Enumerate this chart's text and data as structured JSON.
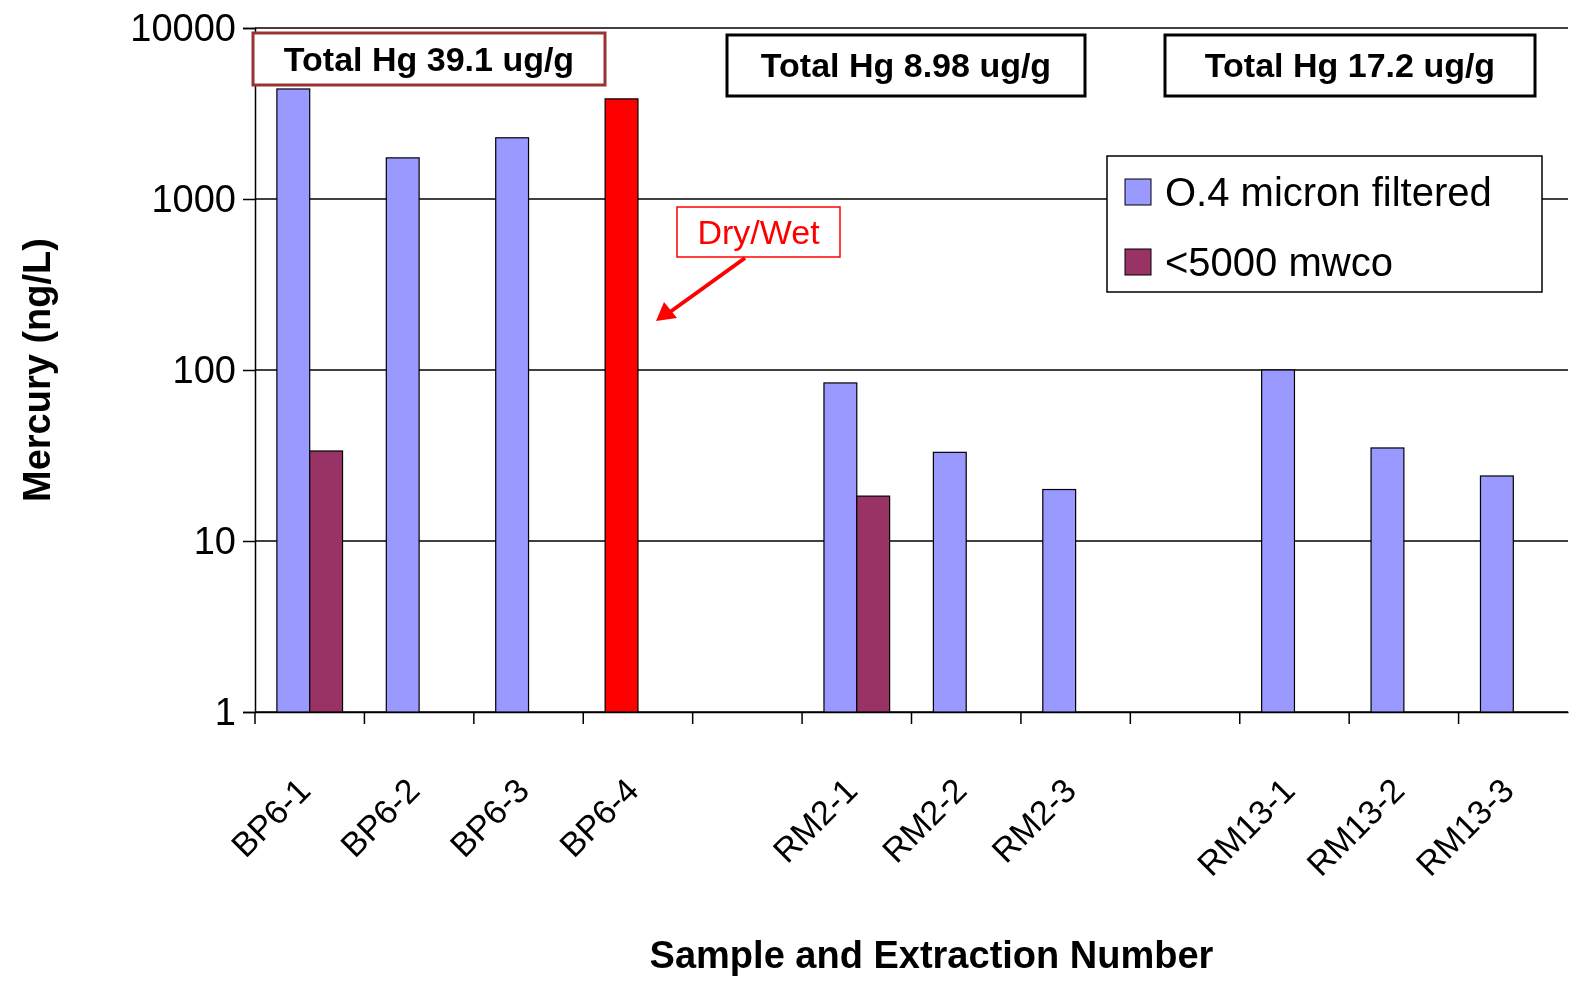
{
  "chart_data": {
    "type": "bar",
    "xlabel": "Sample and Extraction Number",
    "ylabel": "Mercury (ng/L)",
    "categories": [
      "BP6-1",
      "BP6-2",
      "BP6-3",
      "BP6-4",
      null,
      "RM2-1",
      "RM2-2",
      "RM2-3",
      null,
      "RM13-1",
      "RM13-2",
      "RM13-3"
    ],
    "series": [
      {
        "name": "O.4 micron filtered",
        "color": "#9999ff",
        "colors": [
          "#9999ff",
          "#9999ff",
          "#9999ff",
          "#ff0000",
          null,
          "#9999ff",
          "#9999ff",
          "#9999ff",
          null,
          "#9999ff",
          "#9999ff",
          "#9999ff"
        ],
        "values": [
          4400,
          1740,
          2280,
          3850,
          null,
          84,
          33,
          20,
          null,
          100,
          35,
          24
        ]
      },
      {
        "name": "<5000 mwco",
        "color": "#993366",
        "values": [
          33.6,
          null,
          null,
          null,
          null,
          18.3,
          null,
          null,
          null,
          null,
          null,
          null
        ]
      }
    ],
    "ylim": [
      1,
      10000
    ],
    "yticks": [
      1,
      10,
      100,
      1000,
      10000
    ],
    "log": true,
    "grid": "y",
    "legend": "top right",
    "annotations": [
      "Total Hg 39.1 ug/g",
      "Total Hg 8.98 ug/g",
      "Total Hg 17.2 ug/g",
      "Dry/Wet"
    ]
  }
}
